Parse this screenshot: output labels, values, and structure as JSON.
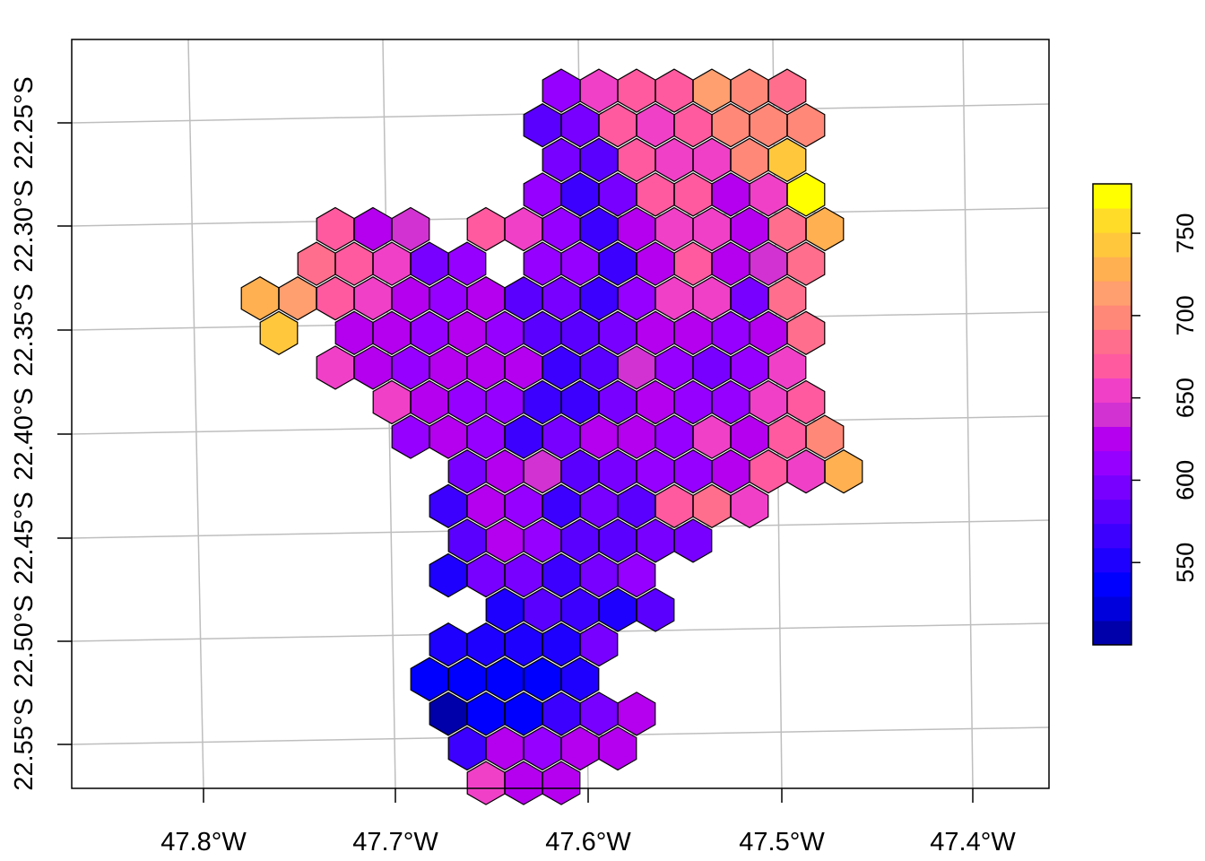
{
  "map": {
    "grid_on": true,
    "x_ticks": [
      "47.8°W",
      "47.7°W",
      "47.6°W",
      "47.5°W",
      "47.4°W"
    ],
    "y_ticks": [
      "22.25°S",
      "22.30°S",
      "22.35°S",
      "22.40°S",
      "22.45°S",
      "22.50°S",
      "22.55°S"
    ],
    "grid_color": "#bebebe",
    "hex_stroke": "#000000",
    "legend": {
      "placement": "right",
      "ticks": [
        "550",
        "600",
        "650",
        "700",
        "750"
      ],
      "tick_values": [
        550,
        600,
        650,
        700,
        750
      ],
      "range": [
        500,
        780
      ],
      "color_bins": [
        "#0000aa",
        "#0000dd",
        "#0000ff",
        "#1e00ff",
        "#3c00ff",
        "#5a00ff",
        "#7800ff",
        "#9600ff",
        "#b400ee",
        "#d232d2",
        "#f040c8",
        "#ff5aa0",
        "#ff6e8c",
        "#ff8878",
        "#ff9e6e",
        "#ffb050",
        "#ffc83c",
        "#ffdc28",
        "#ffff00"
      ]
    }
  },
  "chart_data": {
    "type": "hexbin-choropleth",
    "xlabel": "",
    "ylabel": "",
    "hexagons": [
      {
        "col": 11,
        "row": 1,
        "v": 607
      },
      {
        "col": 12,
        "row": 1,
        "v": 652
      },
      {
        "col": 13,
        "row": 1,
        "v": 668
      },
      {
        "col": 14,
        "row": 1,
        "v": 668
      },
      {
        "col": 15,
        "row": 1,
        "v": 710
      },
      {
        "col": 16,
        "row": 1,
        "v": 705
      },
      {
        "col": 17,
        "row": 1,
        "v": 688
      },
      {
        "col": 10,
        "row": 2,
        "v": 588
      },
      {
        "col": 11,
        "row": 2,
        "v": 595
      },
      {
        "col": 12,
        "row": 2,
        "v": 670
      },
      {
        "col": 13,
        "row": 2,
        "v": 652
      },
      {
        "col": 14,
        "row": 2,
        "v": 668
      },
      {
        "col": 15,
        "row": 2,
        "v": 705
      },
      {
        "col": 16,
        "row": 2,
        "v": 705
      },
      {
        "col": 17,
        "row": 2,
        "v": 705
      },
      {
        "col": 11,
        "row": 3,
        "v": 590
      },
      {
        "col": 12,
        "row": 3,
        "v": 585
      },
      {
        "col": 13,
        "row": 3,
        "v": 670
      },
      {
        "col": 14,
        "row": 3,
        "v": 655
      },
      {
        "col": 15,
        "row": 3,
        "v": 655
      },
      {
        "col": 16,
        "row": 3,
        "v": 705
      },
      {
        "col": 17,
        "row": 3,
        "v": 740
      },
      {
        "col": 10,
        "row": 4,
        "v": 610
      },
      {
        "col": 11,
        "row": 4,
        "v": 565
      },
      {
        "col": 12,
        "row": 4,
        "v": 600
      },
      {
        "col": 13,
        "row": 4,
        "v": 668
      },
      {
        "col": 14,
        "row": 4,
        "v": 668
      },
      {
        "col": 15,
        "row": 4,
        "v": 630
      },
      {
        "col": 16,
        "row": 4,
        "v": 655
      },
      {
        "col": 17,
        "row": 4,
        "v": 770
      },
      {
        "col": 5,
        "row": 5,
        "v": 670
      },
      {
        "col": 6,
        "row": 5,
        "v": 630
      },
      {
        "col": 7,
        "row": 5,
        "v": 635
      },
      {
        "col": 9,
        "row": 5,
        "v": 670
      },
      {
        "col": 10,
        "row": 5,
        "v": 655
      },
      {
        "col": 11,
        "row": 5,
        "v": 615
      },
      {
        "col": 12,
        "row": 5,
        "v": 570
      },
      {
        "col": 13,
        "row": 5,
        "v": 625
      },
      {
        "col": 14,
        "row": 5,
        "v": 655
      },
      {
        "col": 15,
        "row": 5,
        "v": 655
      },
      {
        "col": 16,
        "row": 5,
        "v": 625
      },
      {
        "col": 17,
        "row": 5,
        "v": 690
      },
      {
        "col": 18,
        "row": 5,
        "v": 730
      },
      {
        "col": 4,
        "row": 6,
        "v": 680
      },
      {
        "col": 5,
        "row": 6,
        "v": 665
      },
      {
        "col": 6,
        "row": 6,
        "v": 655
      },
      {
        "col": 7,
        "row": 6,
        "v": 600
      },
      {
        "col": 8,
        "row": 6,
        "v": 605
      },
      {
        "col": 10,
        "row": 6,
        "v": 605
      },
      {
        "col": 11,
        "row": 6,
        "v": 610
      },
      {
        "col": 12,
        "row": 6,
        "v": 560
      },
      {
        "col": 13,
        "row": 6,
        "v": 625
      },
      {
        "col": 14,
        "row": 6,
        "v": 665
      },
      {
        "col": 15,
        "row": 6,
        "v": 625
      },
      {
        "col": 16,
        "row": 6,
        "v": 645
      },
      {
        "col": 17,
        "row": 6,
        "v": 680
      },
      {
        "col": 3,
        "row": 7,
        "v": 730
      },
      {
        "col": 4,
        "row": 7,
        "v": 720
      },
      {
        "col": 5,
        "row": 7,
        "v": 670
      },
      {
        "col": 6,
        "row": 7,
        "v": 655
      },
      {
        "col": 7,
        "row": 7,
        "v": 625
      },
      {
        "col": 8,
        "row": 7,
        "v": 610
      },
      {
        "col": 9,
        "row": 7,
        "v": 625
      },
      {
        "col": 10,
        "row": 7,
        "v": 585
      },
      {
        "col": 11,
        "row": 7,
        "v": 595
      },
      {
        "col": 12,
        "row": 7,
        "v": 570
      },
      {
        "col": 13,
        "row": 7,
        "v": 615
      },
      {
        "col": 14,
        "row": 7,
        "v": 655
      },
      {
        "col": 15,
        "row": 7,
        "v": 650
      },
      {
        "col": 16,
        "row": 7,
        "v": 600
      },
      {
        "col": 17,
        "row": 7,
        "v": 680
      },
      {
        "col": 3,
        "row": 8,
        "v": 750
      },
      {
        "col": 5,
        "row": 8,
        "v": 630
      },
      {
        "col": 6,
        "row": 8,
        "v": 625
      },
      {
        "col": 7,
        "row": 8,
        "v": 610
      },
      {
        "col": 8,
        "row": 8,
        "v": 630
      },
      {
        "col": 9,
        "row": 8,
        "v": 610
      },
      {
        "col": 10,
        "row": 8,
        "v": 580
      },
      {
        "col": 11,
        "row": 8,
        "v": 585
      },
      {
        "col": 12,
        "row": 8,
        "v": 590
      },
      {
        "col": 13,
        "row": 8,
        "v": 630
      },
      {
        "col": 14,
        "row": 8,
        "v": 630
      },
      {
        "col": 15,
        "row": 8,
        "v": 615
      },
      {
        "col": 16,
        "row": 8,
        "v": 630
      },
      {
        "col": 17,
        "row": 8,
        "v": 680
      },
      {
        "col": 5,
        "row": 9,
        "v": 655
      },
      {
        "col": 6,
        "row": 9,
        "v": 620
      },
      {
        "col": 7,
        "row": 9,
        "v": 615
      },
      {
        "col": 8,
        "row": 9,
        "v": 620
      },
      {
        "col": 9,
        "row": 9,
        "v": 630
      },
      {
        "col": 10,
        "row": 9,
        "v": 620
      },
      {
        "col": 11,
        "row": 9,
        "v": 570
      },
      {
        "col": 12,
        "row": 9,
        "v": 575
      },
      {
        "col": 13,
        "row": 9,
        "v": 635
      },
      {
        "col": 14,
        "row": 9,
        "v": 610
      },
      {
        "col": 15,
        "row": 9,
        "v": 600
      },
      {
        "col": 16,
        "row": 9,
        "v": 610
      },
      {
        "col": 17,
        "row": 9,
        "v": 655
      },
      {
        "col": 6,
        "row": 10,
        "v": 655
      },
      {
        "col": 7,
        "row": 10,
        "v": 630
      },
      {
        "col": 8,
        "row": 10,
        "v": 610
      },
      {
        "col": 9,
        "row": 10,
        "v": 610
      },
      {
        "col": 10,
        "row": 10,
        "v": 565
      },
      {
        "col": 11,
        "row": 10,
        "v": 570
      },
      {
        "col": 12,
        "row": 10,
        "v": 590
      },
      {
        "col": 13,
        "row": 10,
        "v": 630
      },
      {
        "col": 14,
        "row": 10,
        "v": 605
      },
      {
        "col": 15,
        "row": 10,
        "v": 615
      },
      {
        "col": 16,
        "row": 10,
        "v": 650
      },
      {
        "col": 17,
        "row": 10,
        "v": 670
      },
      {
        "col": 7,
        "row": 11,
        "v": 605
      },
      {
        "col": 8,
        "row": 11,
        "v": 630
      },
      {
        "col": 9,
        "row": 11,
        "v": 610
      },
      {
        "col": 10,
        "row": 11,
        "v": 570
      },
      {
        "col": 11,
        "row": 11,
        "v": 590
      },
      {
        "col": 12,
        "row": 11,
        "v": 630
      },
      {
        "col": 13,
        "row": 11,
        "v": 630
      },
      {
        "col": 14,
        "row": 11,
        "v": 610
      },
      {
        "col": 15,
        "row": 11,
        "v": 655
      },
      {
        "col": 16,
        "row": 11,
        "v": 630
      },
      {
        "col": 17,
        "row": 11,
        "v": 665
      },
      {
        "col": 18,
        "row": 11,
        "v": 705
      },
      {
        "col": 8,
        "row": 12,
        "v": 590
      },
      {
        "col": 9,
        "row": 12,
        "v": 630
      },
      {
        "col": 10,
        "row": 12,
        "v": 640
      },
      {
        "col": 11,
        "row": 12,
        "v": 575
      },
      {
        "col": 12,
        "row": 12,
        "v": 595
      },
      {
        "col": 13,
        "row": 12,
        "v": 610
      },
      {
        "col": 14,
        "row": 12,
        "v": 605
      },
      {
        "col": 15,
        "row": 12,
        "v": 630
      },
      {
        "col": 16,
        "row": 12,
        "v": 665
      },
      {
        "col": 17,
        "row": 12,
        "v": 660
      },
      {
        "col": 18,
        "row": 12,
        "v": 735
      },
      {
        "col": 8,
        "row": 13,
        "v": 570
      },
      {
        "col": 9,
        "row": 13,
        "v": 630
      },
      {
        "col": 10,
        "row": 13,
        "v": 610
      },
      {
        "col": 11,
        "row": 13,
        "v": 565
      },
      {
        "col": 12,
        "row": 13,
        "v": 600
      },
      {
        "col": 13,
        "row": 13,
        "v": 585
      },
      {
        "col": 14,
        "row": 13,
        "v": 675
      },
      {
        "col": 15,
        "row": 13,
        "v": 680
      },
      {
        "col": 16,
        "row": 13,
        "v": 660
      },
      {
        "col": 8,
        "row": 14,
        "v": 580
      },
      {
        "col": 9,
        "row": 14,
        "v": 620
      },
      {
        "col": 10,
        "row": 14,
        "v": 615
      },
      {
        "col": 11,
        "row": 14,
        "v": 580
      },
      {
        "col": 12,
        "row": 14,
        "v": 580
      },
      {
        "col": 13,
        "row": 14,
        "v": 600
      },
      {
        "col": 14,
        "row": 14,
        "v": 590
      },
      {
        "col": 8,
        "row": 15,
        "v": 545
      },
      {
        "col": 9,
        "row": 15,
        "v": 600
      },
      {
        "col": 10,
        "row": 15,
        "v": 595
      },
      {
        "col": 11,
        "row": 15,
        "v": 560
      },
      {
        "col": 12,
        "row": 15,
        "v": 600
      },
      {
        "col": 13,
        "row": 15,
        "v": 605
      },
      {
        "col": 9,
        "row": 16,
        "v": 555
      },
      {
        "col": 10,
        "row": 16,
        "v": 580
      },
      {
        "col": 11,
        "row": 16,
        "v": 570
      },
      {
        "col": 12,
        "row": 16,
        "v": 555
      },
      {
        "col": 13,
        "row": 16,
        "v": 575
      },
      {
        "col": 8,
        "row": 17,
        "v": 555
      },
      {
        "col": 9,
        "row": 17,
        "v": 550
      },
      {
        "col": 10,
        "row": 17,
        "v": 555
      },
      {
        "col": 11,
        "row": 17,
        "v": 545
      },
      {
        "col": 12,
        "row": 17,
        "v": 600
      },
      {
        "col": 7,
        "row": 18,
        "v": 535
      },
      {
        "col": 8,
        "row": 18,
        "v": 530
      },
      {
        "col": 9,
        "row": 18,
        "v": 530
      },
      {
        "col": 10,
        "row": 18,
        "v": 530
      },
      {
        "col": 11,
        "row": 18,
        "v": 550
      },
      {
        "col": 8,
        "row": 19,
        "v": 510
      },
      {
        "col": 9,
        "row": 19,
        "v": 530
      },
      {
        "col": 10,
        "row": 19,
        "v": 540
      },
      {
        "col": 11,
        "row": 19,
        "v": 570
      },
      {
        "col": 12,
        "row": 19,
        "v": 595
      },
      {
        "col": 13,
        "row": 19,
        "v": 630
      },
      {
        "col": 8,
        "row": 20,
        "v": 570
      },
      {
        "col": 9,
        "row": 20,
        "v": 625
      },
      {
        "col": 10,
        "row": 20,
        "v": 610
      },
      {
        "col": 11,
        "row": 20,
        "v": 630
      },
      {
        "col": 12,
        "row": 20,
        "v": 625
      },
      {
        "col": 9,
        "row": 21,
        "v": 655
      },
      {
        "col": 10,
        "row": 21,
        "v": 630
      },
      {
        "col": 11,
        "row": 21,
        "v": 630
      }
    ]
  }
}
